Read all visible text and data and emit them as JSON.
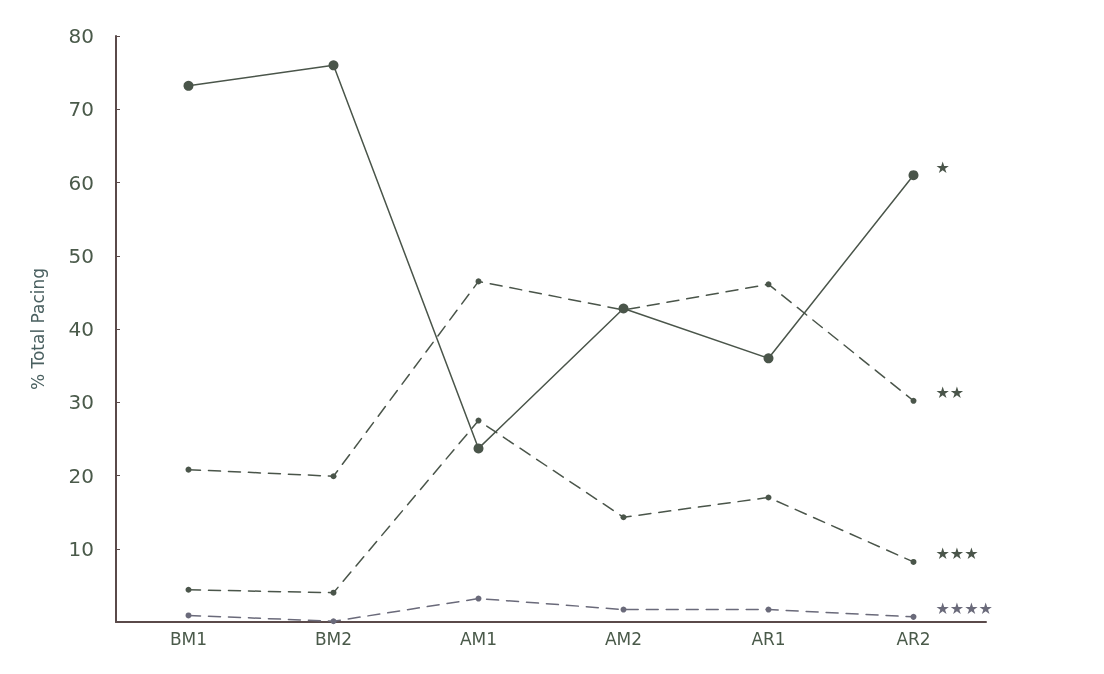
{
  "chart_data": {
    "type": "line",
    "ylabel": "% Total Pacing",
    "categories": [
      "BM1",
      "BM2",
      "AM1",
      "AM2",
      "AR1",
      "AR2"
    ],
    "series": [
      {
        "name": "★",
        "color": "#4a554a",
        "line_style": "solid",
        "values": [
          73.2,
          76,
          23.7,
          42.8,
          36,
          61
        ]
      },
      {
        "name": "★★",
        "color": "#4a554a",
        "line_style": "dashed",
        "values": [
          20.8,
          19.9,
          46.5,
          42.6,
          46.1,
          30.2
        ]
      },
      {
        "name": "★★★",
        "color": "#4a554a",
        "line_style": "dashed",
        "values": [
          4.4,
          4.0,
          27.5,
          14.3,
          17,
          8.2
        ]
      },
      {
        "name": "★★★★",
        "color": "#6a6a7a",
        "line_style": "dashed",
        "values": [
          0.9,
          0.1,
          3.2,
          1.7,
          1.7,
          0.7
        ]
      }
    ],
    "ylim": [
      0,
      80
    ],
    "yticks": [
      10,
      20,
      30,
      40,
      50,
      60,
      70,
      80
    ],
    "grid": false,
    "legend": false,
    "marker": "circle"
  }
}
